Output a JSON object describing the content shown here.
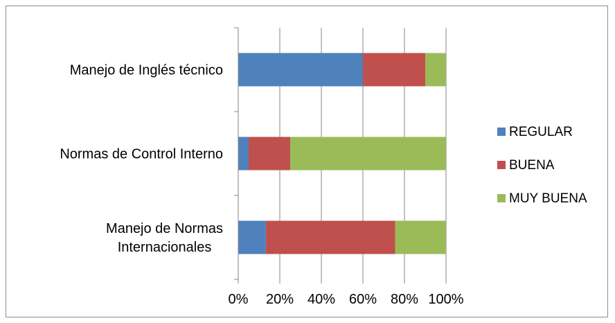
{
  "chart_data": {
    "type": "bar",
    "orientation": "horizontal",
    "stacked": "percent",
    "title": "",
    "xlabel": "",
    "ylabel": "",
    "xlim": [
      0,
      100
    ],
    "x_ticks": [
      "0%",
      "20%",
      "40%",
      "60%",
      "80%",
      "100%"
    ],
    "categories": [
      [
        "Manejo de Inglés técnico"
      ],
      [
        "Normas de Control Interno"
      ],
      [
        "Manejo de Normas",
        "Internacionales"
      ]
    ],
    "series": [
      {
        "name": "REGULAR",
        "color": "#4f81bd",
        "values": [
          60,
          5,
          13.3
        ]
      },
      {
        "name": "BUENA",
        "color": "#c0504d",
        "values": [
          30,
          20,
          62.2
        ]
      },
      {
        "name": "MUY BUENA",
        "color": "#9bbb59",
        "values": [
          10,
          75,
          24.5
        ]
      }
    ],
    "grid": "vertical",
    "legend_position": "right"
  }
}
